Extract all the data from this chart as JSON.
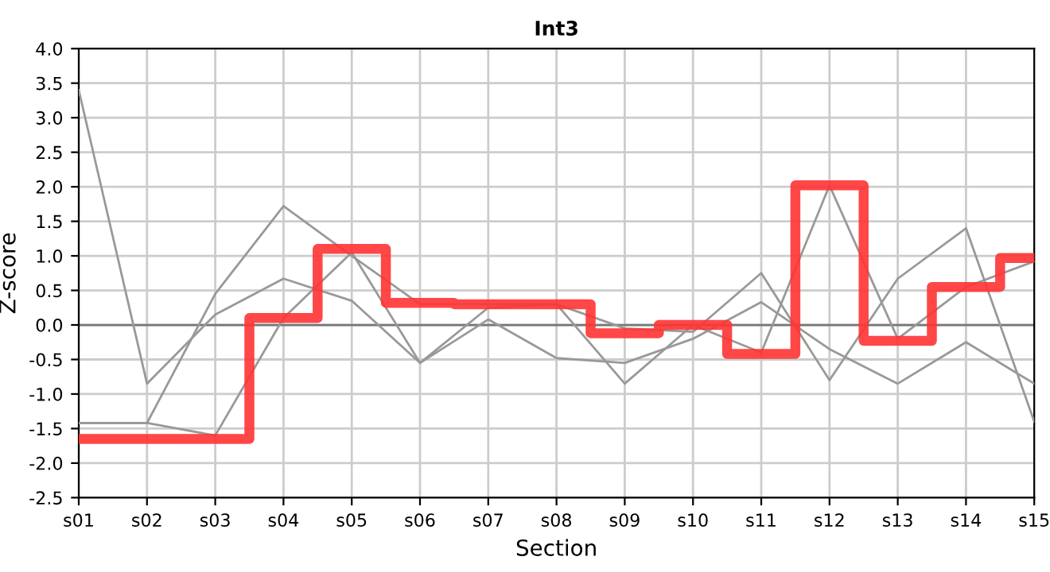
{
  "chart_data": {
    "type": "line",
    "title": "Int3",
    "xlabel": "Section",
    "ylabel": "Z-score",
    "categories": [
      "s01",
      "s02",
      "s03",
      "s04",
      "s05",
      "s06",
      "s07",
      "s08",
      "s09",
      "s10",
      "s11",
      "s12",
      "s13",
      "s14",
      "s15"
    ],
    "series": [
      {
        "color": "#999999",
        "values": [
          3.4,
          -0.85,
          0.15,
          0.67,
          0.35,
          -0.55,
          0.08,
          -0.48,
          -0.55,
          -0.2,
          0.33,
          -0.35,
          -0.85,
          -0.25,
          -0.85
        ]
      },
      {
        "color": "#999999",
        "values": [
          -1.42,
          -1.42,
          0.45,
          1.72,
          1.0,
          0.3,
          0.3,
          0.3,
          -0.05,
          -0.1,
          0.75,
          -0.8,
          0.67,
          1.4,
          -1.4
        ]
      },
      {
        "color": "#999999",
        "values": [
          -1.42,
          -1.42,
          -1.6,
          0.1,
          1.05,
          -0.55,
          0.25,
          0.3,
          -0.85,
          0.0,
          -0.4,
          2.02,
          -0.2,
          0.55,
          0.92
        ]
      },
      {
        "type": "step",
        "color": "#ff3333",
        "values": [
          -1.65,
          -1.65,
          -1.65,
          0.1,
          1.1,
          0.32,
          0.3,
          0.3,
          -0.12,
          0.0,
          -0.42,
          2.02,
          -0.23,
          0.55,
          0.97
        ]
      }
    ],
    "ylim": [
      -2.5,
      4.0
    ],
    "yticks": [
      {
        "value": -2.5,
        "label": "-2.5"
      },
      {
        "value": -2.0,
        "label": "-2.0"
      },
      {
        "value": -1.5,
        "label": "-1.5"
      },
      {
        "value": -1.0,
        "label": "-1.0"
      },
      {
        "value": -0.5,
        "label": "-0.5"
      },
      {
        "value": 0.0,
        "label": "0.0"
      },
      {
        "value": 0.5,
        "label": "0.5"
      },
      {
        "value": 1.0,
        "label": "1.0"
      },
      {
        "value": 1.5,
        "label": "1.5"
      },
      {
        "value": 2.0,
        "label": "2.0"
      },
      {
        "value": 2.5,
        "label": "2.5"
      },
      {
        "value": 3.0,
        "label": "3.0"
      },
      {
        "value": 3.5,
        "label": "3.5"
      },
      {
        "value": 4.0,
        "label": "4.0"
      }
    ],
    "ref_lines": [
      {
        "axis": "y",
        "value": 0,
        "color": "#777777"
      }
    ],
    "grid": true,
    "marker": "none",
    "line_style": "solid"
  }
}
